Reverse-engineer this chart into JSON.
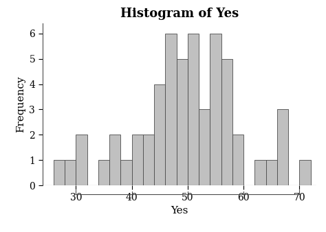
{
  "title": "Histogram of Yes",
  "xlabel": "Yes",
  "ylabel": "Frequency",
  "bar_color": "#c0c0c0",
  "bar_edge_color": "#4a4a4a",
  "bar_edge_width": 0.6,
  "xlim": [
    24,
    73
  ],
  "ylim": [
    0,
    6.4
  ],
  "yticks": [
    0,
    1,
    2,
    3,
    4,
    5,
    6
  ],
  "xticks": [
    30,
    40,
    50,
    60,
    70
  ],
  "background_color": "#ffffff",
  "bins": [
    26,
    28,
    30,
    32,
    34,
    36,
    38,
    40,
    42,
    44,
    46,
    48,
    50,
    52,
    54,
    56,
    58,
    60,
    62,
    64,
    66,
    68,
    70,
    72
  ],
  "frequencies": [
    1,
    1,
    2,
    0,
    1,
    2,
    1,
    2,
    2,
    4,
    6,
    5,
    6,
    3,
    6,
    5,
    2,
    0,
    1,
    1,
    3,
    0,
    1
  ],
  "title_fontsize": 13,
  "label_fontsize": 11,
  "tick_fontsize": 10,
  "title_fontweight": "bold",
  "bracket_xmin": 30,
  "bracket_xmax": 70
}
